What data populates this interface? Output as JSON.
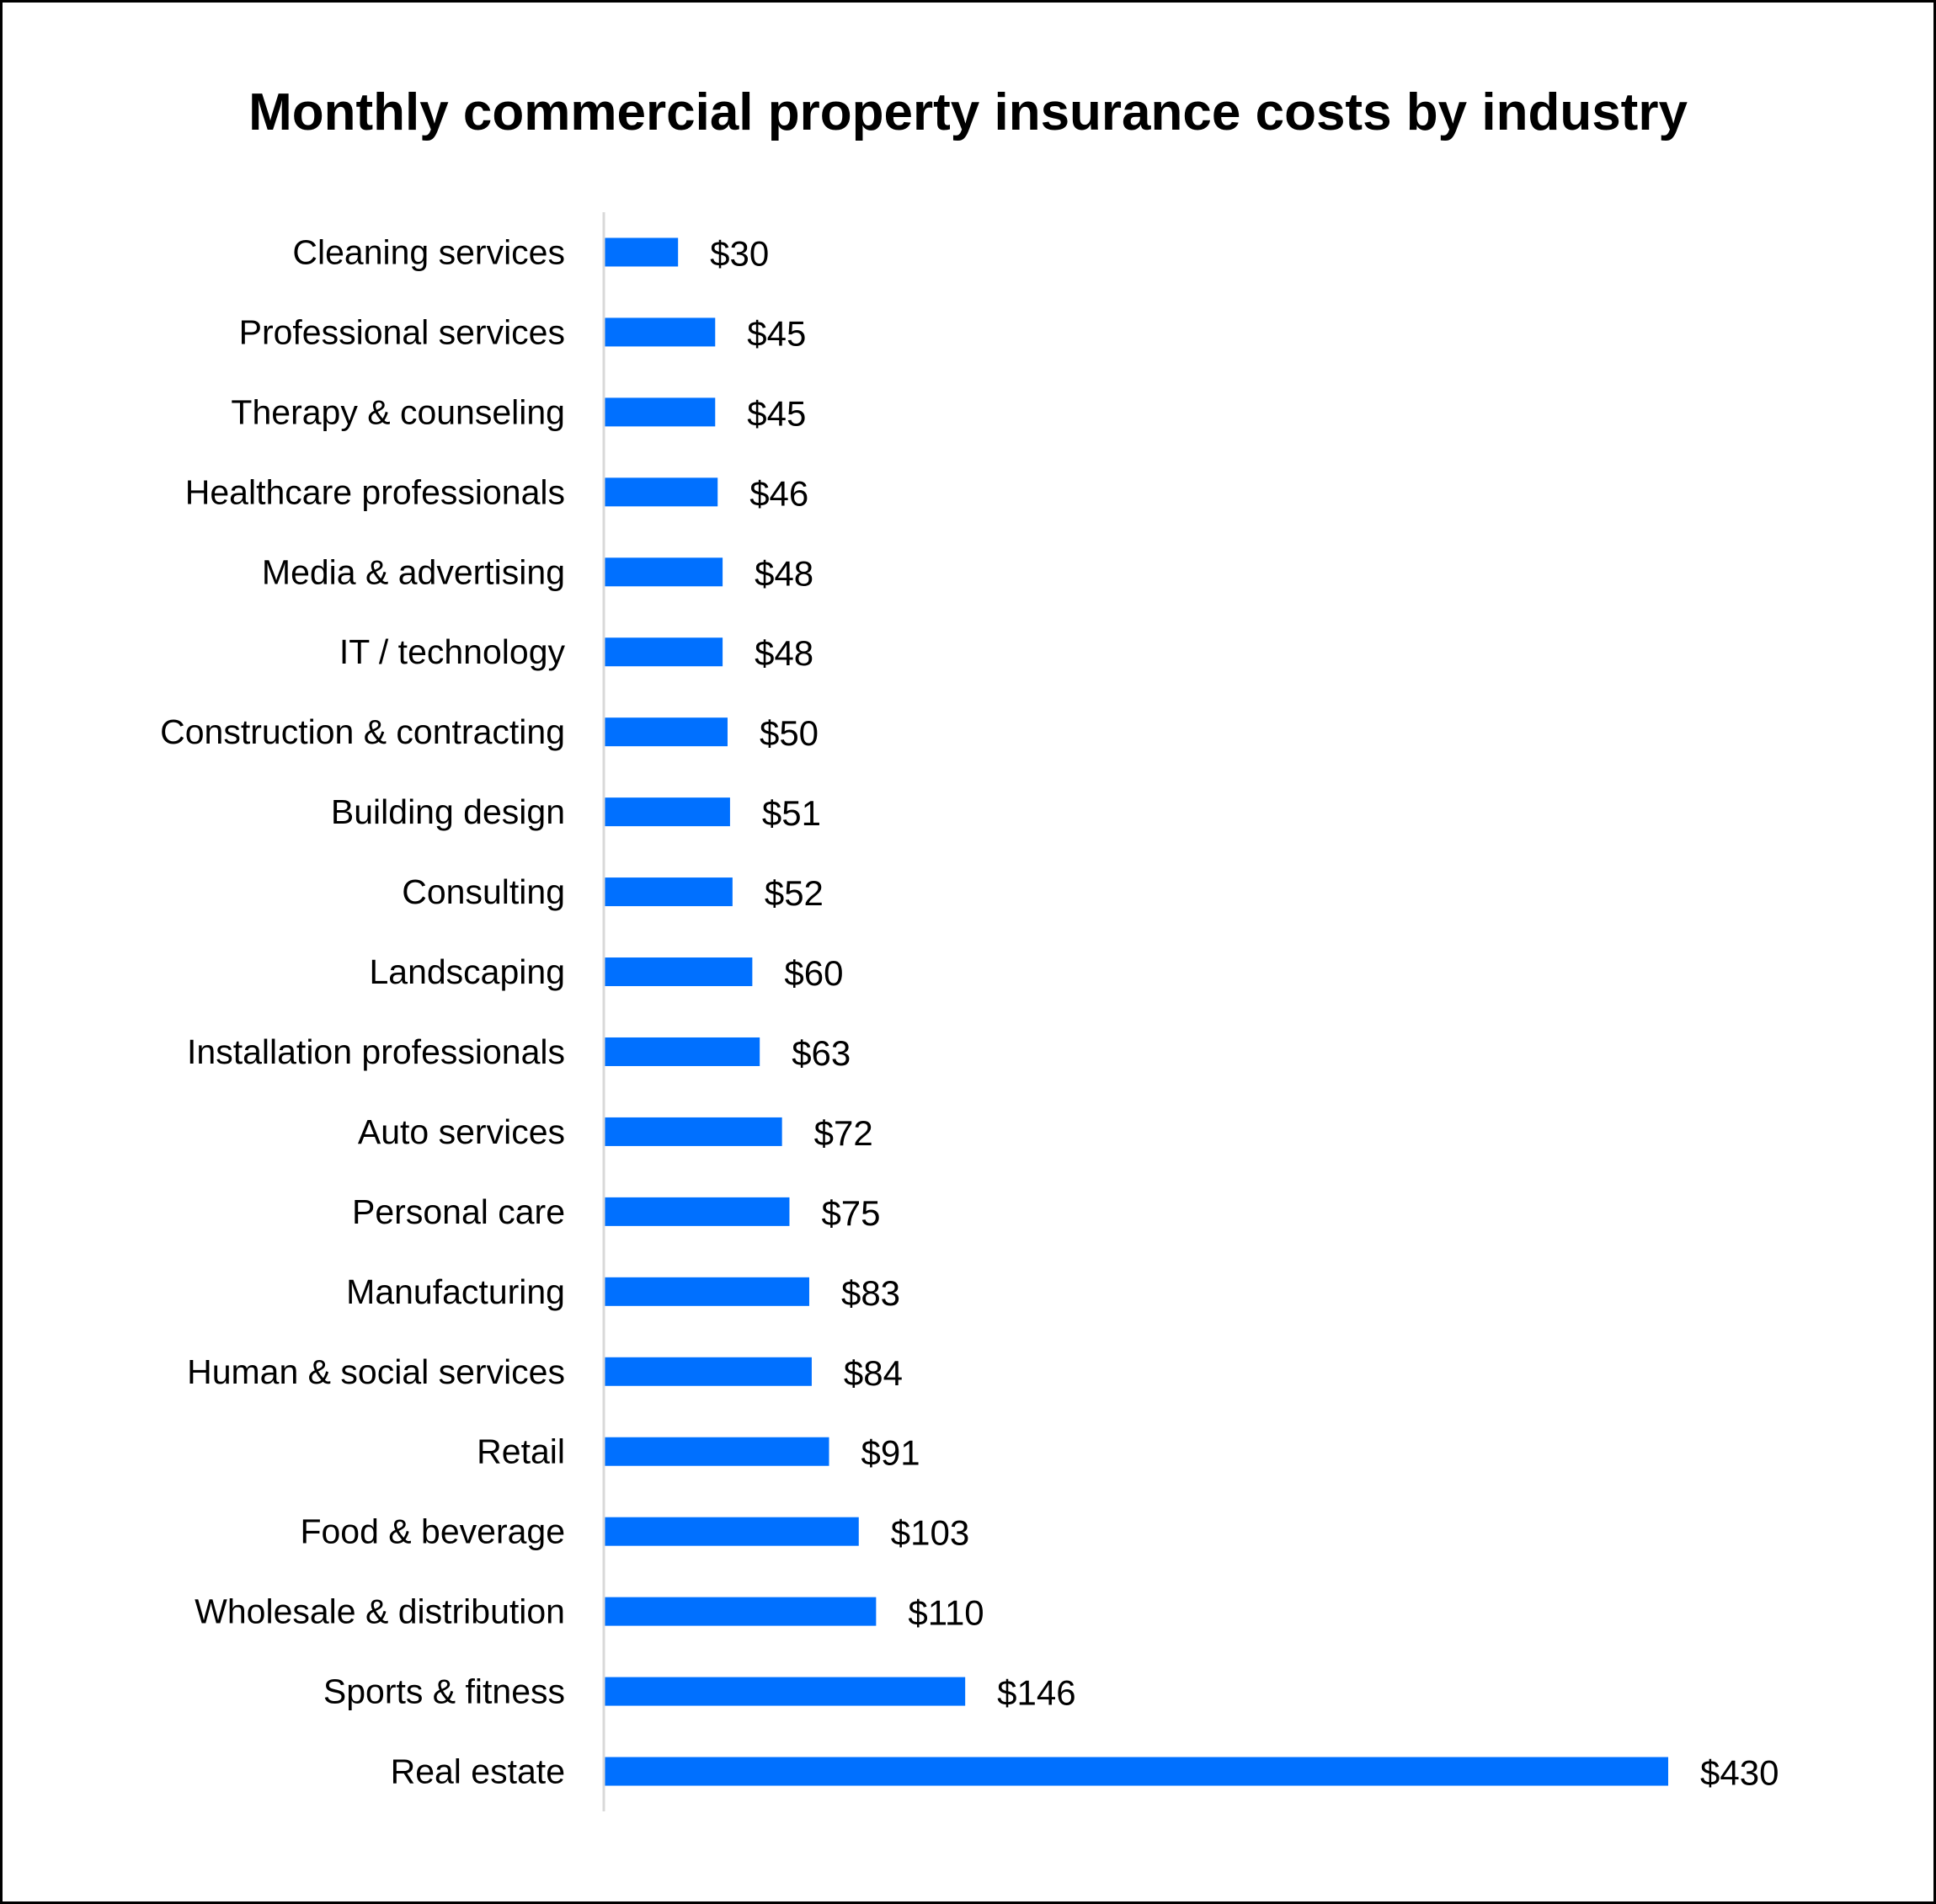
{
  "chart_data": {
    "type": "bar",
    "orientation": "horizontal",
    "title": "Monthly commercial property insurance costs by industry",
    "xlabel": "",
    "ylabel": "",
    "categories": [
      "Cleaning services",
      "Professional services",
      "Therapy & counseling",
      "Healthcare professionals",
      "Media & advertising",
      "IT / technology",
      "Construction & contracting",
      "Building design",
      "Consulting",
      "Landscaping",
      "Installation professionals",
      "Auto services",
      "Personal care",
      "Manufacturing",
      "Human & social services",
      "Retail",
      "Food & beverage",
      "Wholesale & distribution",
      "Sports & fitness",
      "Real estate"
    ],
    "values": [
      30,
      45,
      45,
      46,
      48,
      48,
      50,
      51,
      52,
      60,
      63,
      72,
      75,
      83,
      84,
      91,
      103,
      110,
      146,
      430
    ],
    "data_labels": [
      "$30",
      "$45",
      "$45",
      "$46",
      "$48",
      "$48",
      "$50",
      "$51",
      "$52",
      "$60",
      "$63",
      "$72",
      "$75",
      "$83",
      "$84",
      "$91",
      "$103",
      "$110",
      "$146",
      "$430"
    ],
    "xlim": [
      0,
      430
    ],
    "grid": false,
    "legend": "none",
    "bar_color": "#0070FF",
    "axis_color": "#D9D9D9"
  }
}
